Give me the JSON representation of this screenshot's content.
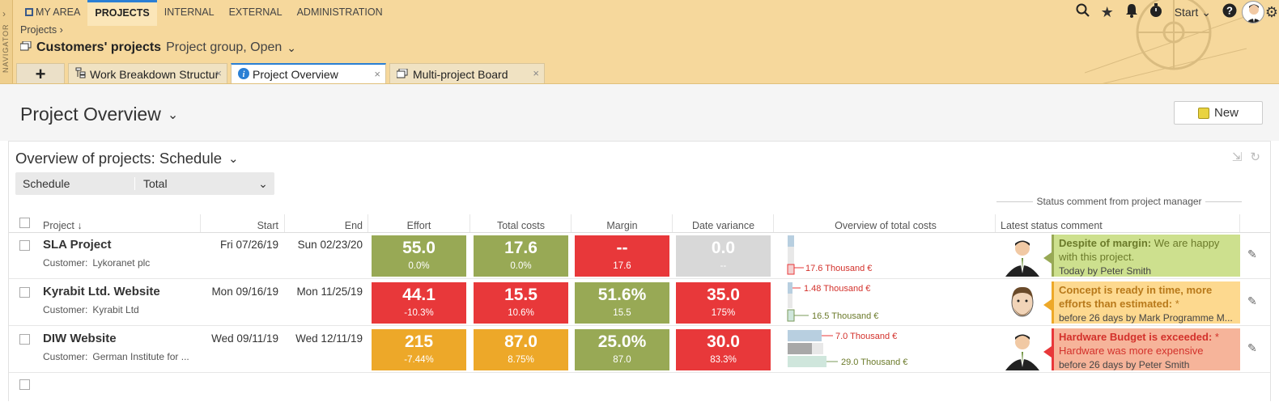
{
  "nav": {
    "navigator_label": "NAVIGATOR",
    "items": [
      {
        "label": "MY AREA"
      },
      {
        "label": "PROJECTS"
      },
      {
        "label": "INTERNAL"
      },
      {
        "label": "EXTERNAL"
      },
      {
        "label": "ADMINISTRATION"
      }
    ],
    "active": "PROJECTS",
    "start_label": "Start"
  },
  "breadcrumb": "Projects  ›",
  "project_group": {
    "title": "Customers' projects",
    "subtitle": "Project group, Open"
  },
  "tabs": [
    {
      "label": "Work Breakdown Structure",
      "display": "Work Breakdown Structur"
    },
    {
      "label": "Project Overview"
    },
    {
      "label": "Multi-project Board"
    }
  ],
  "page": {
    "title": "Project Overview",
    "new_button": "New"
  },
  "panel": {
    "title": "Overview of projects: Schedule",
    "filter_left": "Schedule",
    "filter_right": "Total",
    "status_group_header": "Status comment from project manager"
  },
  "columns": {
    "project": "Project",
    "start": "Start",
    "end": "End",
    "effort": "Effort",
    "total_costs": "Total costs",
    "margin": "Margin",
    "date_variance": "Date variance",
    "overview_costs": "Overview of total costs",
    "latest_status": "Latest status comment"
  },
  "colors": {
    "green": "#98a955",
    "red": "#e8383a",
    "orange": "#eda829",
    "gray": "#d8d8d8",
    "accent": "#2a7fd4",
    "header_bg": "#f6d89c"
  },
  "rows": [
    {
      "name": "SLA Project",
      "customer_label": "Customer:",
      "customer": "Lykoranet plc",
      "start": "Fri 07/26/19",
      "end": "Sun 02/23/20",
      "effort": {
        "value": "55.0",
        "sub": "0.0%",
        "color": "green"
      },
      "costs": {
        "value": "17.6",
        "sub": "0.0%",
        "color": "green"
      },
      "margin": {
        "value": "--",
        "sub": "17.6",
        "color": "red"
      },
      "datevar": {
        "value": "0.0",
        "sub": "--",
        "color": "gray"
      },
      "cost_labels": [
        "17.6 Thousand €"
      ],
      "status": {
        "title": "Despite of margin:",
        "text": " We are happy with this project.",
        "by": "Today by Peter Smith",
        "color": "green",
        "avatar": "businessman-icon"
      }
    },
    {
      "name": "Kyrabit Ltd. Website",
      "customer_label": "Customer:",
      "customer": "Kyrabit Ltd",
      "start": "Mon 09/16/19",
      "end": "Mon 11/25/19",
      "effort": {
        "value": "44.1",
        "sub": "-10.3%",
        "color": "red"
      },
      "costs": {
        "value": "15.5",
        "sub": "10.6%",
        "color": "red"
      },
      "margin": {
        "value": "51.6%",
        "sub": "15.5",
        "color": "green"
      },
      "datevar": {
        "value": "35.0",
        "sub": "175%",
        "color": "red"
      },
      "cost_labels": [
        "1.48 Thousand €",
        "16.5 Thousand €"
      ],
      "status": {
        "title": "Concept is ready in time, more efforts than estimated:",
        "text": " *",
        "by": "before 26 days by Mark Programme M...",
        "color": "orange",
        "avatar": "bearded-man-icon"
      }
    },
    {
      "name": "DIW Website",
      "customer_label": "Customer:",
      "customer": "German Institute for ...",
      "start": "Wed 09/11/19",
      "end": "Wed 12/11/19",
      "effort": {
        "value": "215",
        "sub": "-7.44%",
        "color": "orange"
      },
      "costs": {
        "value": "87.0",
        "sub": "8.75%",
        "color": "orange"
      },
      "margin": {
        "value": "25.0%",
        "sub": "87.0",
        "color": "green"
      },
      "datevar": {
        "value": "30.0",
        "sub": "83.3%",
        "color": "red"
      },
      "cost_labels": [
        "7.0 Thousand €",
        "29.0 Thousand €"
      ],
      "status": {
        "title": "Hardware Budget is exceeded:",
        "text": " * Hardware was more expensive",
        "by": "before 26 days by Peter Smith",
        "color": "red",
        "avatar": "businessman-icon"
      }
    }
  ]
}
